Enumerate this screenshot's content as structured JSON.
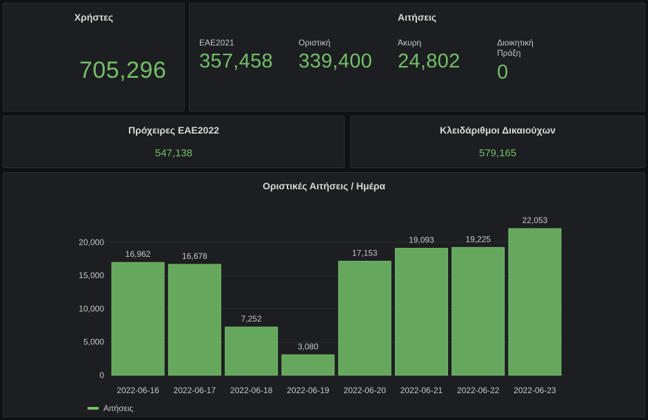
{
  "users_panel": {
    "title": "Χρήστες",
    "value": "705,296"
  },
  "requests_panel": {
    "title": "Αιτήσεις",
    "stats": [
      {
        "label": "ΕΑΕ2021",
        "value": "357,458"
      },
      {
        "label": "Οριστική",
        "value": "339,400"
      },
      {
        "label": "Άκυρη",
        "value": "24,802"
      },
      {
        "label": "Διοικητική Πράξη",
        "value": "0"
      }
    ]
  },
  "drafts_panel": {
    "title": "Πρόχειρες ΕΑΕ2022",
    "value": "547,138"
  },
  "keys_panel": {
    "title": "Κλειδάριθμοι Δικαιούχων",
    "value": "579,165"
  },
  "colors": {
    "accent": "#73bf69",
    "panel": "#1d1e21",
    "background": "#101114"
  },
  "chart_data": {
    "type": "bar",
    "title": "Οριστικές Αιτήσεις / Ημέρα",
    "categories": [
      "2022-06-16",
      "2022-06-17",
      "2022-06-18",
      "2022-06-19",
      "2022-06-20",
      "2022-06-21",
      "2022-06-22",
      "2022-06-23"
    ],
    "series": [
      {
        "name": "Αιτήσεις",
        "values": [
          16962,
          16678,
          7252,
          3080,
          17153,
          19093,
          19225,
          22053
        ]
      }
    ],
    "value_labels": [
      "16,962",
      "16,678",
      "7,252",
      "3,080",
      "17,153",
      "19,093",
      "19,225",
      "22,053"
    ],
    "yticks": [
      "0",
      "5,000",
      "10,000",
      "15,000",
      "20,000"
    ],
    "ytick_values": [
      0,
      5000,
      10000,
      15000,
      20000
    ],
    "ylim": [
      0,
      22053
    ],
    "grid": true,
    "legend": "bottom-left"
  }
}
